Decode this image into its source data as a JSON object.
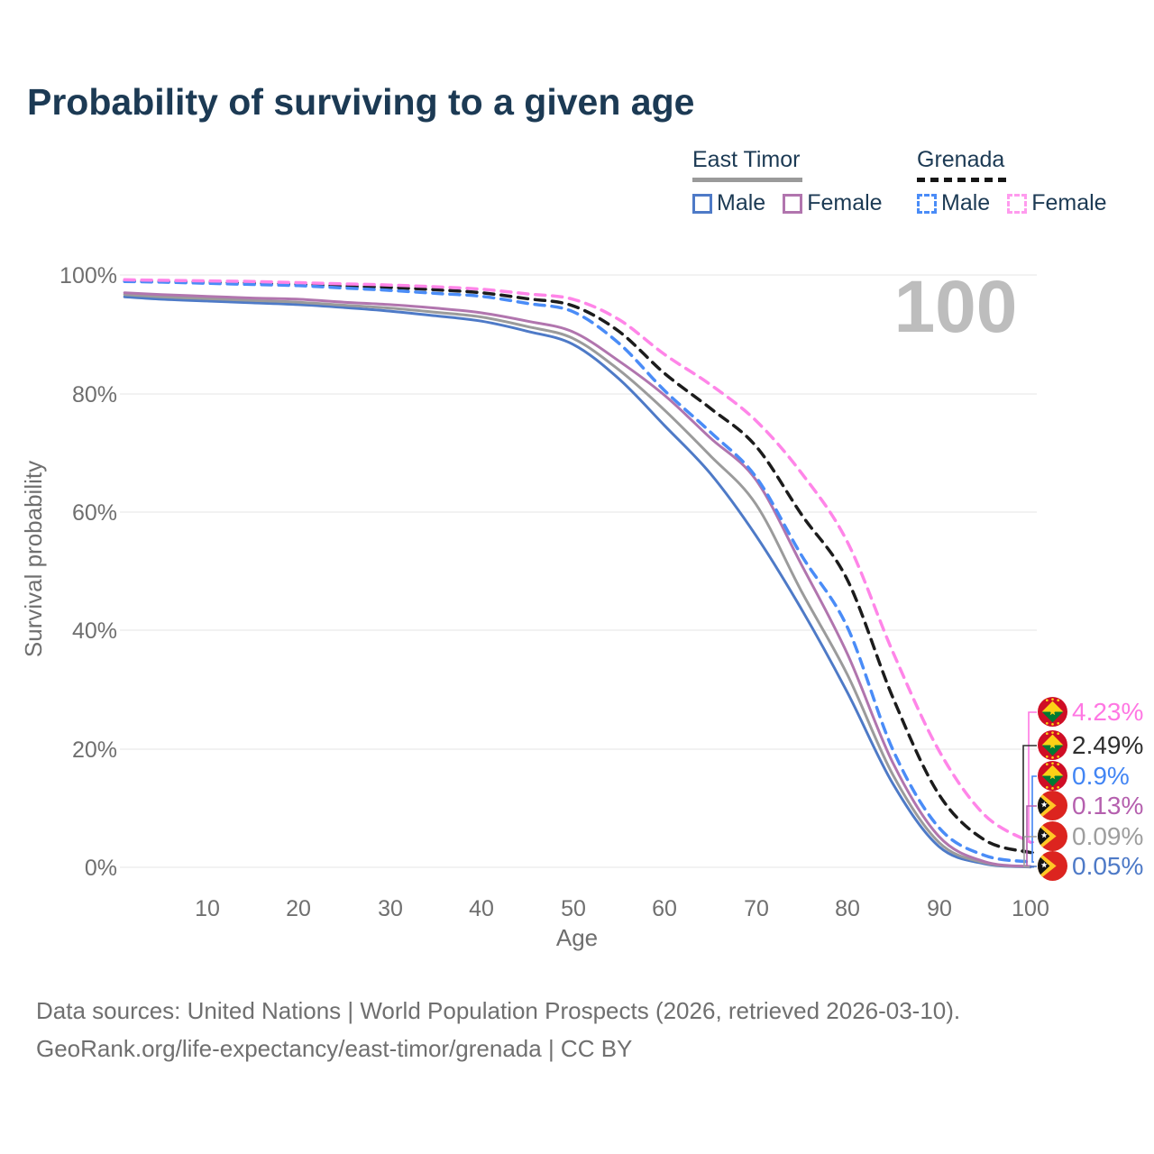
{
  "title": "Probability of surviving to a given age",
  "watermark": "100",
  "legend": {
    "groups": [
      {
        "name": "East Timor",
        "style": "solid",
        "items": [
          {
            "label": "Male"
          },
          {
            "label": "Female"
          }
        ]
      },
      {
        "name": "Grenada",
        "style": "dashed",
        "items": [
          {
            "label": "Male"
          },
          {
            "label": "Female"
          }
        ]
      }
    ]
  },
  "axes": {
    "y_label": "Survival probability",
    "x_label": "Age",
    "y_ticks": [
      "100%",
      "80%",
      "60%",
      "40%",
      "20%",
      "0%"
    ],
    "x_ticks": [
      "10",
      "20",
      "30",
      "40",
      "50",
      "60",
      "70",
      "80",
      "90",
      "100"
    ]
  },
  "end_labels": [
    {
      "value": "4.23%",
      "country": "Grenada",
      "series": "Female",
      "color": "#ff77e3"
    },
    {
      "value": "2.49%",
      "country": "Grenada",
      "series": "Combined",
      "color": "#2e2e2e"
    },
    {
      "value": "0.9%",
      "country": "Grenada",
      "series": "Male",
      "color": "#4285f4"
    },
    {
      "value": "0.13%",
      "country": "East Timor",
      "series": "Female",
      "color": "#b560ae"
    },
    {
      "value": "0.09%",
      "country": "East Timor",
      "series": "Combined",
      "color": "#9e9e9e"
    },
    {
      "value": "0.05%",
      "country": "East Timor",
      "series": "Male",
      "color": "#4e7ac7"
    }
  ],
  "footer": {
    "line1": "Data sources: United Nations | World Population Prospects (2026, retrieved 2026-03-10).",
    "line2": "GeoRank.org/life-expectancy/east-timor/grenada | CC BY"
  },
  "chart_data": {
    "type": "line",
    "title": "Probability of surviving to a given age",
    "xlabel": "Age",
    "ylabel": "Survival probability",
    "xlim": [
      1,
      100
    ],
    "ylim": [
      0,
      100
    ],
    "grid": "horizontal",
    "legend_position": "top-right",
    "x": [
      1,
      5,
      10,
      15,
      20,
      25,
      30,
      35,
      40,
      45,
      50,
      55,
      60,
      65,
      70,
      75,
      80,
      85,
      90,
      95,
      100
    ],
    "series": [
      {
        "name": "East Timor Male",
        "color": "#4e7ac7",
        "dash": "none",
        "values": [
          96.3,
          95.9,
          95.6,
          95.3,
          95.0,
          94.5,
          93.9,
          93.1,
          92.2,
          90.5,
          88.3,
          82.5,
          74.6,
          66.5,
          56.0,
          43.5,
          29.5,
          14.0,
          3.5,
          0.6,
          0.05
        ]
      },
      {
        "name": "East Timor Combined",
        "color": "#9b9b9b",
        "dash": "none",
        "values": [
          96.7,
          96.3,
          96.0,
          95.7,
          95.4,
          94.9,
          94.4,
          93.7,
          92.9,
          91.3,
          89.3,
          84.0,
          77.2,
          69.5,
          61.3,
          46.5,
          32.5,
          15.5,
          4.2,
          0.75,
          0.09
        ]
      },
      {
        "name": "East Timor Female",
        "color": "#b175ae",
        "dash": "none",
        "values": [
          97.0,
          96.7,
          96.4,
          96.1,
          95.9,
          95.4,
          95.0,
          94.4,
          93.6,
          92.2,
          90.4,
          85.5,
          79.7,
          72.5,
          65.4,
          51.0,
          36.0,
          17.5,
          5.2,
          0.95,
          0.13
        ]
      },
      {
        "name": "Grenada Combined",
        "color": "#1c1c1c",
        "dash": "dashed",
        "values": [
          99.0,
          98.9,
          98.8,
          98.6,
          98.4,
          98.1,
          97.9,
          97.5,
          97.0,
          96.0,
          94.8,
          90.5,
          83.4,
          77.5,
          71.1,
          59.5,
          48.5,
          28.5,
          12.3,
          4.6,
          2.49
        ]
      },
      {
        "name": "Grenada Male",
        "color": "#4a8cf7",
        "dash": "dashed",
        "values": [
          98.9,
          98.8,
          98.6,
          98.4,
          98.2,
          97.8,
          97.4,
          96.9,
          96.4,
          95.2,
          93.8,
          88.5,
          80.5,
          73.5,
          65.9,
          52.6,
          40.5,
          19.7,
          6.7,
          2.0,
          0.9
        ]
      },
      {
        "name": "Grenada Female",
        "color": "#ff85e8",
        "dash": "dashed",
        "values": [
          99.2,
          99.1,
          99.0,
          98.9,
          98.7,
          98.5,
          98.3,
          98.0,
          97.6,
          96.8,
          95.9,
          92.5,
          86.6,
          81.5,
          75.4,
          66.5,
          54.9,
          36.2,
          19.7,
          8.8,
          4.23
        ]
      }
    ]
  }
}
